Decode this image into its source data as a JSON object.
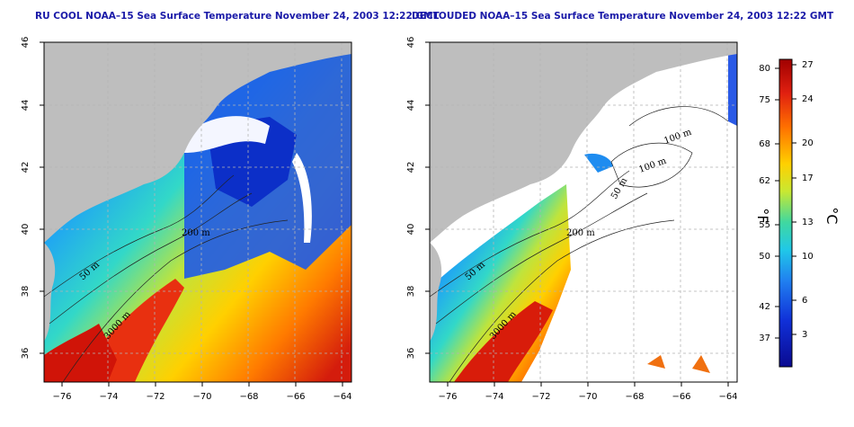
{
  "panels": [
    {
      "title": "RU COOL NOAA–15 Sea Surface Temperature November 24, 2003 12:22 GMT",
      "contour_labels": [
        "50 m",
        "200 m",
        "3000 m"
      ]
    },
    {
      "title": "DECLOUDED NOAA–15 Sea Surface Temperature November 24, 2003 12:22 GMT",
      "contour_labels": [
        "50 m",
        "200 m",
        "100 m",
        "100 m",
        "50 m",
        "3000 m"
      ]
    }
  ],
  "axes": {
    "lon_ticks": [
      "−76",
      "−74",
      "−72",
      "−70",
      "−68",
      "−66",
      "−64"
    ],
    "lat_ticks": [
      "46",
      "44",
      "42",
      "40",
      "38",
      "36"
    ]
  },
  "colorbar": {
    "f_label": "°F",
    "c_label": "°C",
    "f_ticks": [
      "80",
      "75",
      "68",
      "62",
      "55",
      "50",
      "42",
      "37"
    ],
    "c_ticks": [
      "27",
      "24",
      "20",
      "17",
      "13",
      "10",
      "6",
      "3"
    ],
    "colors": [
      "#a00000",
      "#e02010",
      "#ff7000",
      "#ffd000",
      "#c8e832",
      "#40d8a0",
      "#20c8e8",
      "#2080f0",
      "#1030d8",
      "#0a0a90"
    ]
  },
  "palette": {
    "land": "#bebebe",
    "cloud": "#ffffff",
    "grid": "#b4b4b4"
  }
}
